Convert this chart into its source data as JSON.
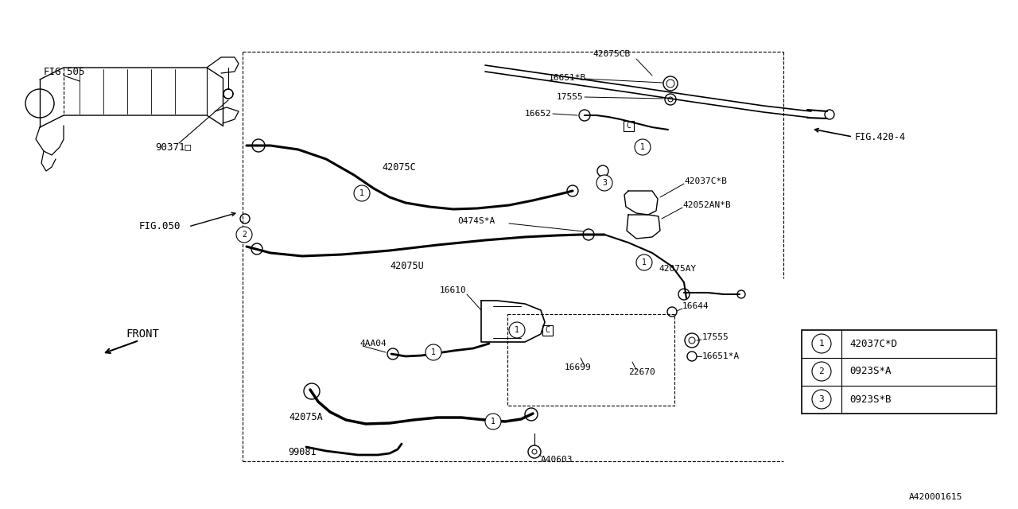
{
  "bg_color": "#ffffff",
  "line_color": "#000000",
  "text_color": "#000000",
  "fig_width": 12.8,
  "fig_height": 6.4,
  "labels": {
    "fig505": "FIG.505",
    "fig050": "FIG.050",
    "fig420_4": "FIG.420-4",
    "front": "FRONT",
    "part_id": "A420001615",
    "p90371": "90371□",
    "p42075CB": "42075CB",
    "p16651B": "16651*B",
    "p17555_top": "17555",
    "p16652": "16652",
    "p42075C": "42075C",
    "p0474SA": "0474S*A",
    "p42075U": "42075U",
    "p42037CB": "42037C*B",
    "p42052ANB": "42052AN*B",
    "p42075AY": "42075AY",
    "p16610": "16610",
    "p16644": "16644",
    "p17555_bot": "17555",
    "p16651A": "16651*A",
    "p16699": "16699",
    "p22670": "22670",
    "p4AA04": "4AA04",
    "p42075A": "42075A",
    "p99081": "99081",
    "pA40603": "A40603",
    "legend_1_code": "42037C*D",
    "legend_2_code": "0923S*A",
    "legend_3_code": "0923S*B"
  }
}
